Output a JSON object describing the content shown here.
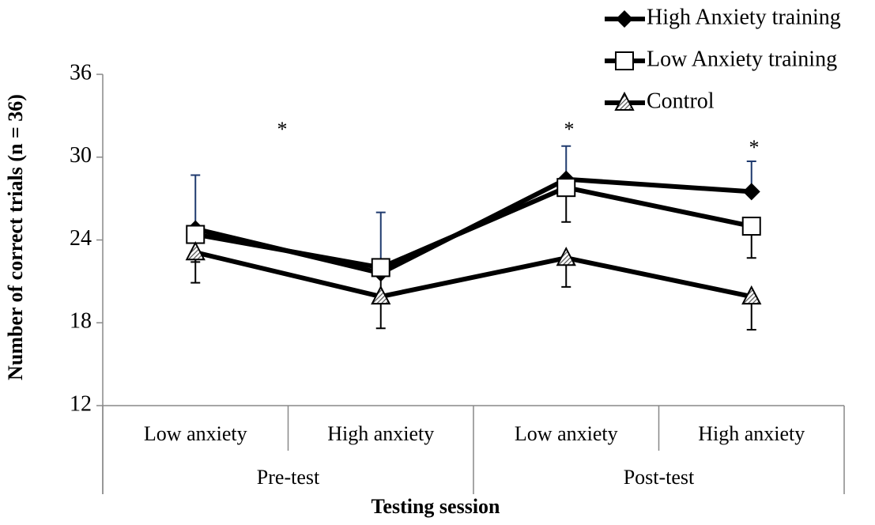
{
  "chart_data": {
    "type": "line",
    "y_label": "Number of correct trials (n = 36)",
    "x_label": "Testing session",
    "categories": [
      "Low anxiety",
      "High anxiety",
      "Low anxiety",
      "High anxiety"
    ],
    "groups": [
      "Pre-test",
      "Post-test"
    ],
    "series": [
      {
        "name": "High Anxiety training",
        "color": "#000000",
        "marker": "diamond",
        "values": [
          24.8,
          21.6,
          28.4,
          27.5
        ],
        "errors": [
          3.9,
          4.4,
          2.4,
          2.2
        ],
        "error_color": "#1f3a6e",
        "error_direction": "up"
      },
      {
        "name": "Low Anxiety training",
        "color": "#000000",
        "marker": "square",
        "values": [
          24.4,
          22.0,
          27.8,
          25.0
        ],
        "errors": [
          2.0,
          2.0,
          2.5,
          2.3
        ],
        "error_color": "#000000",
        "error_direction": "down"
      },
      {
        "name": "Control",
        "color": "#000000",
        "marker": "triangle",
        "values": [
          23.1,
          19.9,
          22.7,
          19.9
        ],
        "errors": [
          2.2,
          2.3,
          2.1,
          2.4
        ],
        "error_color": "#000000",
        "error_direction": "down"
      }
    ],
    "annotations": [
      "*",
      "*",
      "*"
    ],
    "ylim": [
      12,
      36
    ],
    "yticks": [
      12,
      18,
      24,
      30,
      36
    ],
    "legend": "top-right"
  }
}
